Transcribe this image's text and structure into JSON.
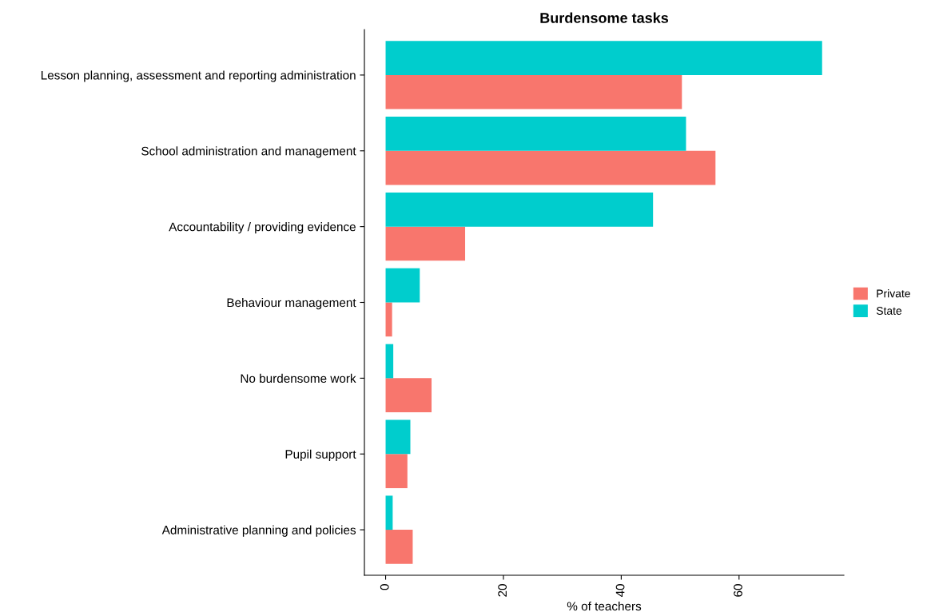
{
  "chart_data": {
    "type": "bar",
    "orientation": "horizontal",
    "title": "Burdensome tasks",
    "xlabel": "% of teachers",
    "categories": [
      "Lesson planning, assessment and reporting administration",
      "School administration and management",
      "Accountability / providing evidence",
      "Behaviour management",
      "No burdensome work",
      "Pupil support",
      "Administrative planning and policies"
    ],
    "series": [
      {
        "name": "Private",
        "color": "#f8766d",
        "values": [
          50.3,
          56.0,
          13.5,
          1.1,
          7.8,
          3.7,
          4.6
        ]
      },
      {
        "name": "State",
        "color": "#00cdcd",
        "values": [
          74.1,
          51.0,
          45.4,
          5.8,
          1.3,
          4.2,
          1.2
        ]
      }
    ],
    "xlim": [
      -3.6,
      77.8
    ],
    "xticks": [
      0,
      20,
      40,
      60
    ],
    "grid": false,
    "legend": "right"
  }
}
